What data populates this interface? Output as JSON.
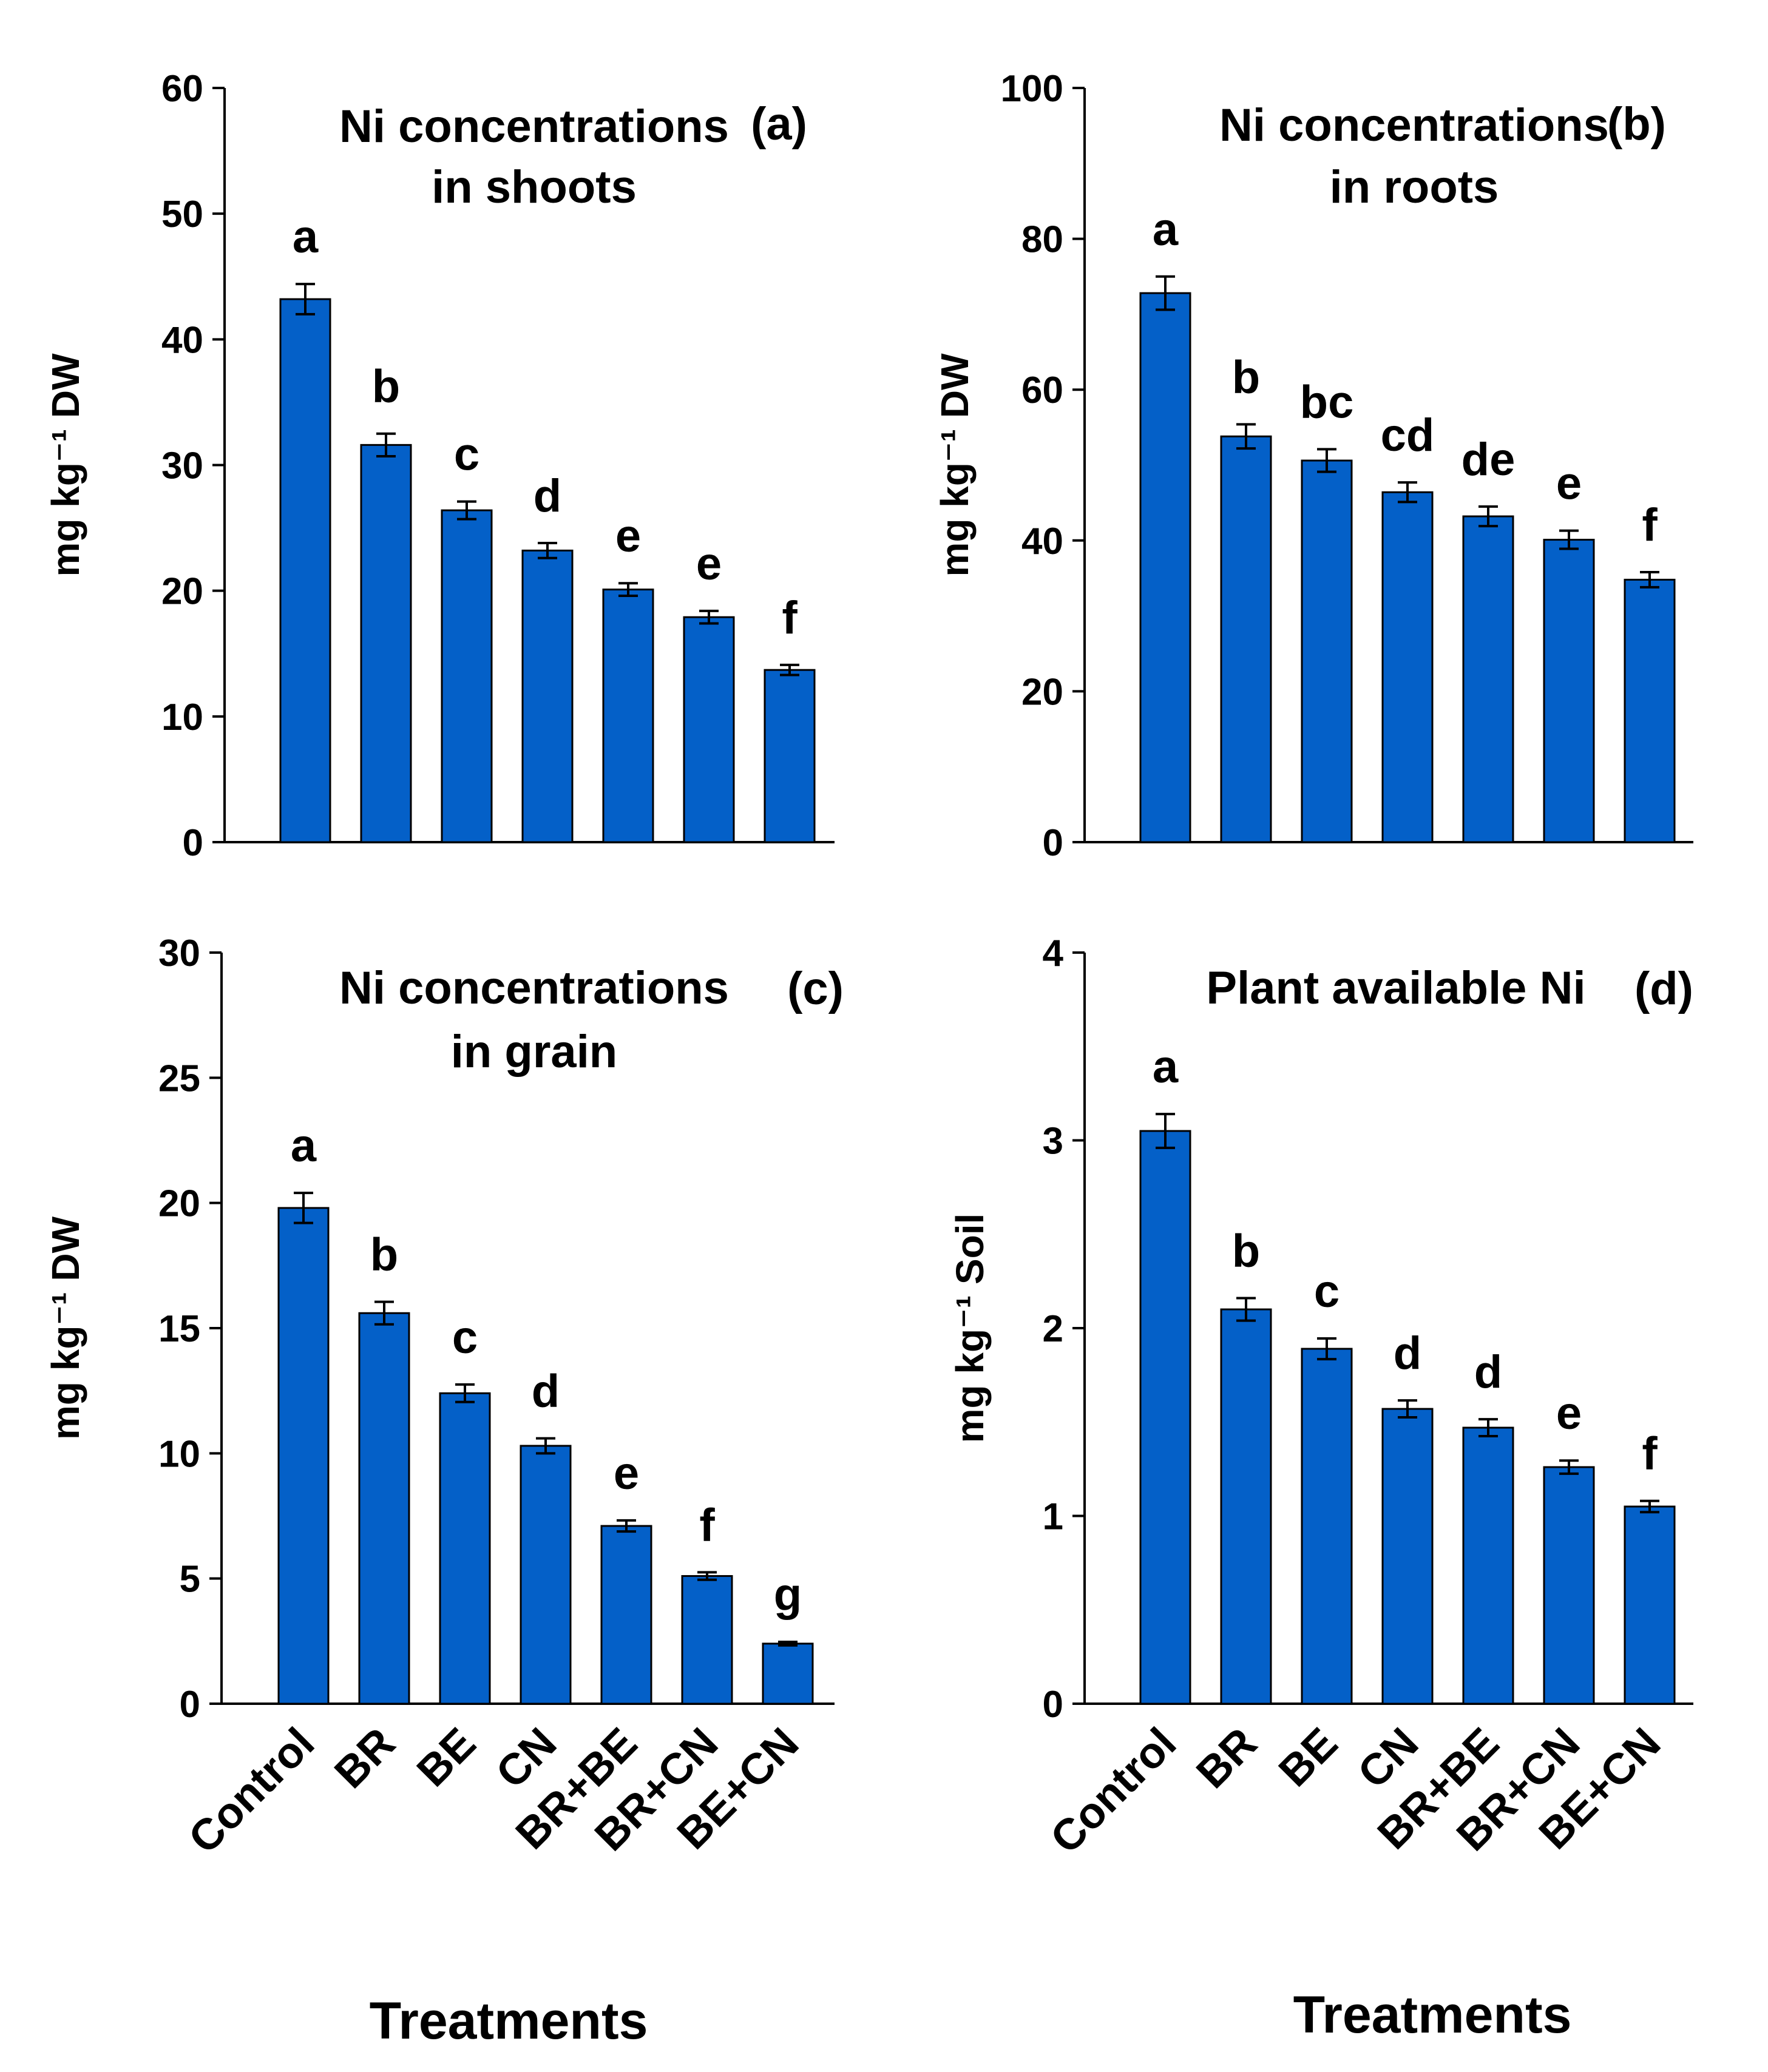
{
  "xlabel": "Treatments",
  "chart_data": [
    {
      "type": "bar",
      "panel": "(a)",
      "title": [
        "Ni concentrations",
        "in shoots"
      ],
      "ylabel": "mg kg⁻¹ DW",
      "ylim": [
        0,
        60
      ],
      "yticks": [
        0,
        10,
        20,
        30,
        40,
        50,
        60
      ],
      "categories": [
        "Control",
        "BR",
        "BE",
        "CN",
        "BR+BE",
        "BR+CN",
        "BE+CN"
      ],
      "values": [
        43.2,
        31.6,
        26.4,
        23.2,
        20.1,
        17.9,
        13.7
      ],
      "errors": [
        1.2,
        0.9,
        0.7,
        0.6,
        0.5,
        0.5,
        0.4
      ],
      "letters": [
        "a",
        "b",
        "c",
        "d",
        "e",
        "e",
        "f"
      ],
      "show_category_labels": false
    },
    {
      "type": "bar",
      "panel": "(b)",
      "title": [
        "Ni concentrations",
        "in roots"
      ],
      "ylabel": "mg kg⁻¹ DW",
      "ylim": [
        0,
        100
      ],
      "yticks": [
        0,
        20,
        40,
        60,
        80,
        100
      ],
      "categories": [
        "Control",
        "BR",
        "BE",
        "CN",
        "BR+BE",
        "BR+CN",
        "BE+CN"
      ],
      "values": [
        72.8,
        53.8,
        50.6,
        46.4,
        43.2,
        40.1,
        34.8
      ],
      "errors": [
        2.2,
        1.6,
        1.5,
        1.3,
        1.3,
        1.2,
        1.0
      ],
      "letters": [
        "a",
        "b",
        "bc",
        "cd",
        "de",
        "e",
        "f"
      ],
      "show_category_labels": false
    },
    {
      "type": "bar",
      "panel": "(c)",
      "title": [
        "Ni concentrations",
        "in grain"
      ],
      "ylabel": "mg kg⁻¹ DW",
      "ylim": [
        0,
        30
      ],
      "yticks": [
        0,
        5,
        10,
        15,
        20,
        25,
        30
      ],
      "categories": [
        "Control",
        "BR",
        "BE",
        "CN",
        "BR+BE",
        "BR+CN",
        "BE+CN"
      ],
      "values": [
        19.8,
        15.6,
        12.4,
        10.3,
        7.1,
        5.1,
        2.4
      ],
      "errors": [
        0.6,
        0.45,
        0.35,
        0.3,
        0.22,
        0.15,
        0.07
      ],
      "letters": [
        "a",
        "b",
        "c",
        "d",
        "e",
        "f",
        "g"
      ],
      "show_category_labels": true
    },
    {
      "type": "bar",
      "panel": "(d)",
      "title": [
        "Plant available Ni"
      ],
      "ylabel": "mg kg⁻¹ Soil",
      "ylim": [
        0,
        4
      ],
      "yticks": [
        0,
        1,
        2,
        3,
        4
      ],
      "categories": [
        "Control",
        "BR",
        "BE",
        "CN",
        "BR+BE",
        "BR+CN",
        "BE+CN"
      ],
      "values": [
        3.05,
        2.1,
        1.89,
        1.57,
        1.47,
        1.26,
        1.05
      ],
      "errors": [
        0.09,
        0.06,
        0.055,
        0.045,
        0.045,
        0.035,
        0.03
      ],
      "letters": [
        "a",
        "b",
        "c",
        "d",
        "d",
        "e",
        "f"
      ],
      "show_category_labels": true
    }
  ]
}
